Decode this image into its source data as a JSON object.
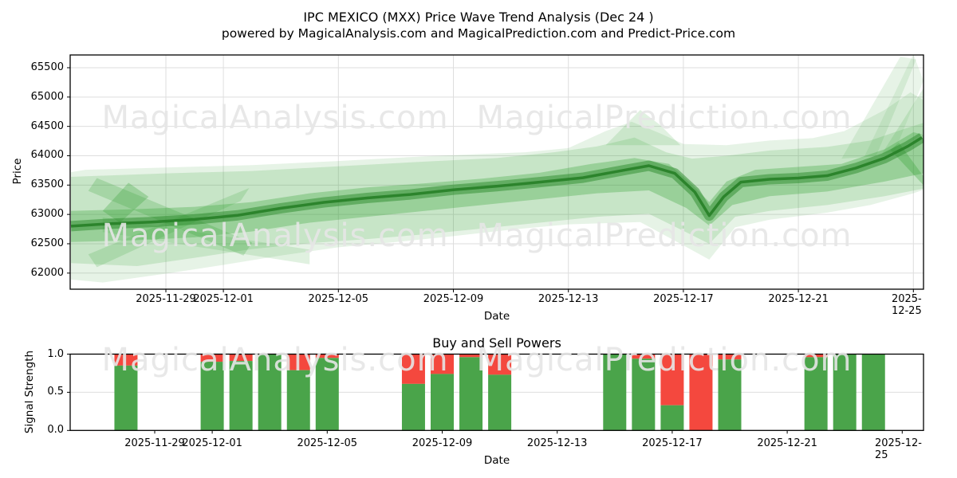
{
  "figure": {
    "title": "IPC MEXICO (MXX) Price Wave Trend Analysis (Dec 24 )",
    "subtitle": "powered by MagicalAnalysis.com and MagicalPrediction.com and Predict-Price.com"
  },
  "watermarks": {
    "left": "MagicalAnalysis.com",
    "right": "MagicalPrediction.com"
  },
  "top_chart": {
    "ylabel": "Price",
    "xlabel": "Date"
  },
  "bottom_chart": {
    "title": "Buy and Sell Powers",
    "ylabel": "Signal Strength",
    "xlabel": "Date"
  },
  "colors": {
    "wave_green": "#2f9e2f",
    "wave_core": "#2c8a2c",
    "wave_line": "#237d23",
    "bar_green": "#4aa44a",
    "bar_red": "#f4483e",
    "grid": "#dedede",
    "spine": "#000000",
    "watermark": "#e9e9e9"
  },
  "chart_data": [
    {
      "type": "area",
      "title": "IPC MEXICO (MXX) Price Wave Trend Analysis (Dec 24 )",
      "xlabel": "Date",
      "ylabel": "Price",
      "ylim": [
        61730,
        65720
      ],
      "yticks": [
        65500,
        65000,
        64500,
        64000,
        63500,
        63000,
        62500,
        62000
      ],
      "x_start_date": "2025-11-26",
      "x_ticks": [
        "2025-11-29",
        "2025-12-01",
        "2025-12-05",
        "2025-12-09",
        "2025-12-13",
        "2025-12-17",
        "2025-12-21",
        "2025-12-25"
      ],
      "grid": true,
      "legend": "none",
      "center_line": [
        [
          -0.3,
          62800
        ],
        [
          1,
          62840
        ],
        [
          2.5,
          62870
        ],
        [
          4,
          62915
        ],
        [
          5.5,
          62985
        ],
        [
          7,
          63105
        ],
        [
          8.5,
          63205
        ],
        [
          10,
          63280
        ],
        [
          11.5,
          63340
        ],
        [
          13,
          63420
        ],
        [
          14.5,
          63480
        ],
        [
          16,
          63550
        ],
        [
          17.5,
          63625
        ],
        [
          19,
          63760
        ],
        [
          19.8,
          63830
        ],
        [
          20.7,
          63700
        ],
        [
          21.4,
          63380
        ],
        [
          21.9,
          62980
        ],
        [
          22.4,
          63300
        ],
        [
          23,
          63550
        ],
        [
          24,
          63600
        ],
        [
          25,
          63620
        ],
        [
          26,
          63660
        ],
        [
          27,
          63790
        ],
        [
          28,
          63960
        ],
        [
          28.8,
          64160
        ],
        [
          29.3,
          64310
        ]
      ],
      "bands": [
        {
          "name": "outer-envelope",
          "alpha": 0.12,
          "top": [
            [
              -0.3,
              63720
            ],
            [
              0.2,
              63760
            ],
            [
              3,
              63800
            ],
            [
              6,
              63840
            ],
            [
              9,
              63910
            ],
            [
              12,
              63990
            ],
            [
              14,
              64030
            ],
            [
              15.5,
              64060
            ],
            [
              17,
              64130
            ],
            [
              18.3,
              64420
            ],
            [
              19.2,
              64580
            ],
            [
              20.2,
              64380
            ],
            [
              21,
              64200
            ],
            [
              22.5,
              64180
            ],
            [
              24,
              64260
            ],
            [
              25.5,
              64300
            ],
            [
              26.6,
              64420
            ],
            [
              28,
              64780
            ],
            [
              28.9,
              65080
            ],
            [
              29.35,
              64950
            ]
          ],
          "bottom": [
            [
              -0.3,
              61890
            ],
            [
              0.8,
              61840
            ],
            [
              3,
              61990
            ],
            [
              5,
              62140
            ],
            [
              7,
              62300
            ],
            [
              9,
              62440
            ],
            [
              11,
              62530
            ],
            [
              13,
              62630
            ],
            [
              15,
              62740
            ],
            [
              17,
              62830
            ],
            [
              19.5,
              62870
            ],
            [
              20.9,
              62500
            ],
            [
              21.9,
              62230
            ],
            [
              22.8,
              62780
            ],
            [
              24,
              62910
            ],
            [
              26,
              63030
            ],
            [
              27.5,
              63160
            ],
            [
              29,
              63360
            ],
            [
              29.35,
              63420
            ]
          ]
        },
        {
          "name": "mid-envelope",
          "alpha": 0.17,
          "top": [
            [
              -0.3,
              63640
            ],
            [
              3,
              63700
            ],
            [
              6,
              63740
            ],
            [
              9,
              63820
            ],
            [
              12,
              63900
            ],
            [
              14.5,
              63960
            ],
            [
              16.5,
              64060
            ],
            [
              18,
              64160
            ],
            [
              19.3,
              64310
            ],
            [
              20.4,
              64060
            ],
            [
              21.3,
              63950
            ],
            [
              22.5,
              64000
            ],
            [
              24,
              64090
            ],
            [
              26,
              64150
            ],
            [
              27.5,
              64260
            ],
            [
              28.7,
              64460
            ],
            [
              29.35,
              64560
            ]
          ],
          "bottom": [
            [
              -0.3,
              62170
            ],
            [
              2,
              62120
            ],
            [
              4,
              62260
            ],
            [
              6,
              62410
            ],
            [
              8,
              62510
            ],
            [
              10,
              62580
            ],
            [
              12,
              62660
            ],
            [
              14,
              62760
            ],
            [
              16,
              62860
            ],
            [
              18,
              62960
            ],
            [
              19.8,
              63010
            ],
            [
              21,
              62720
            ],
            [
              21.9,
              62500
            ],
            [
              22.8,
              62960
            ],
            [
              24,
              63060
            ],
            [
              26,
              63160
            ],
            [
              28,
              63310
            ],
            [
              29.35,
              63440
            ]
          ]
        },
        {
          "name": "inner-band",
          "alpha": 0.3,
          "top": [
            [
              -0.3,
              63060
            ],
            [
              2,
              63090
            ],
            [
              4,
              63130
            ],
            [
              6,
              63210
            ],
            [
              8,
              63360
            ],
            [
              10,
              63460
            ],
            [
              12,
              63530
            ],
            [
              14,
              63610
            ],
            [
              16,
              63710
            ],
            [
              17.8,
              63860
            ],
            [
              19.3,
              63960
            ],
            [
              20.5,
              63860
            ],
            [
              21.3,
              63510
            ],
            [
              21.9,
              63210
            ],
            [
              22.5,
              63560
            ],
            [
              23.5,
              63760
            ],
            [
              25,
              63810
            ],
            [
              26.5,
              63860
            ],
            [
              28,
              64110
            ],
            [
              29,
              64400
            ],
            [
              29.35,
              64360
            ]
          ],
          "bottom": [
            [
              -0.3,
              62530
            ],
            [
              2,
              62560
            ],
            [
              4,
              62610
            ],
            [
              6,
              62710
            ],
            [
              8,
              62860
            ],
            [
              10,
              62960
            ],
            [
              12,
              63060
            ],
            [
              14,
              63160
            ],
            [
              16,
              63260
            ],
            [
              18,
              63360
            ],
            [
              19.8,
              63410
            ],
            [
              21.1,
              63110
            ],
            [
              21.9,
              62810
            ],
            [
              22.7,
              63160
            ],
            [
              24,
              63310
            ],
            [
              26,
              63390
            ],
            [
              28,
              63560
            ],
            [
              29.35,
              63700
            ]
          ]
        }
      ],
      "strands": [
        {
          "name": "cross-strand-down",
          "alpha": 0.22,
          "points": [
            [
              0.3,
              63400
            ],
            [
              0.6,
              63620
            ],
            [
              6.0,
              62520
            ],
            [
              5.7,
              62300
            ]
          ]
        },
        {
          "name": "cross-strand-up",
          "alpha": 0.18,
          "points": [
            [
              0.3,
              62320
            ],
            [
              5.9,
              63450
            ],
            [
              5.6,
              63230
            ],
            [
              0.6,
              62100
            ]
          ]
        },
        {
          "name": "dark-diamond",
          "alpha": 0.28,
          "points": [
            [
              0.8,
              63060
            ],
            [
              1.7,
              63540
            ],
            [
              2.4,
              63300
            ],
            [
              1.4,
              62860
            ]
          ]
        },
        {
          "name": "low-strand",
          "alpha": 0.15,
          "points": [
            [
              0.8,
              62700
            ],
            [
              8,
              62150
            ],
            [
              8,
              62400
            ],
            [
              0.8,
              62950
            ]
          ]
        },
        {
          "name": "hump",
          "alpha": 0.15,
          "points": [
            [
              18.3,
              64180
            ],
            [
              19.5,
              64780
            ],
            [
              20.2,
              64520
            ],
            [
              20.9,
              64180
            ]
          ]
        },
        {
          "name": "fan-spike-1",
          "alpha": 0.12,
          "points": [
            [
              26.5,
              63950
            ],
            [
              28.55,
              65690
            ],
            [
              29.1,
              65640
            ],
            [
              27.7,
              63990
            ]
          ]
        },
        {
          "name": "fan-spike-2",
          "alpha": 0.1,
          "points": [
            [
              27.3,
              63990
            ],
            [
              29.0,
              65730
            ],
            [
              29.35,
              65280
            ],
            [
              28.3,
              64010
            ]
          ]
        },
        {
          "name": "fan-spike-3",
          "alpha": 0.15,
          "points": [
            [
              27.9,
              64030
            ],
            [
              29.35,
              65150
            ],
            [
              29.35,
              64380
            ],
            [
              28.4,
              64080
            ]
          ]
        },
        {
          "name": "end-tail",
          "alpha": 0.3,
          "points": [
            [
              28.2,
              64100
            ],
            [
              29.35,
              63500
            ],
            [
              29.35,
              63650
            ],
            [
              28.5,
              64220
            ]
          ]
        }
      ]
    },
    {
      "type": "bar",
      "title": "Buy and Sell Powers",
      "xlabel": "Date",
      "ylabel": "Signal Strength",
      "ylim": [
        0,
        1
      ],
      "yticks": [
        1.0,
        0.5,
        0.0
      ],
      "x_start_date": "2025-11-26",
      "x_ticks": [
        "2025-11-29",
        "2025-12-01",
        "2025-12-05",
        "2025-12-09",
        "2025-12-13",
        "2025-12-17",
        "2025-12-21",
        "2025-12-25"
      ],
      "grid": "horizontal",
      "stacked": true,
      "categories": [
        "2025-11-28",
        "2025-12-01",
        "2025-12-02",
        "2025-12-03",
        "2025-12-04",
        "2025-12-05",
        "2025-12-08",
        "2025-12-09",
        "2025-12-10",
        "2025-12-11",
        "2025-12-15",
        "2025-12-16",
        "2025-12-17",
        "2025-12-18",
        "2025-12-19",
        "2025-12-22",
        "2025-12-23",
        "2025-12-24"
      ],
      "series": [
        {
          "name": "buy",
          "values": [
            0.85,
            0.9,
            0.91,
            1.0,
            0.79,
            0.95,
            0.61,
            0.74,
            0.96,
            0.73,
            1.0,
            0.94,
            0.33,
            0.0,
            0.93,
            0.96,
            1.0,
            1.0
          ]
        },
        {
          "name": "sell",
          "values": [
            0.15,
            0.1,
            0.09,
            0.0,
            0.21,
            0.05,
            0.39,
            0.26,
            0.04,
            0.27,
            0.0,
            0.06,
            0.67,
            1.0,
            0.07,
            0.04,
            0.0,
            0.0
          ]
        }
      ]
    }
  ]
}
